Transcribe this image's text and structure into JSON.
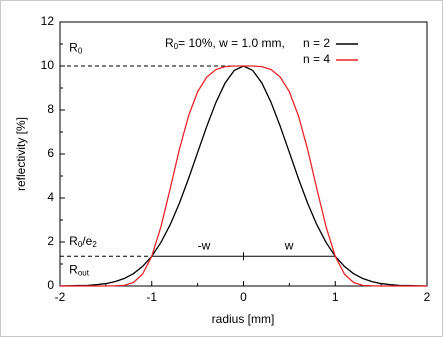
{
  "chart_data": {
    "type": "line",
    "x_label": "radius [mm]",
    "y_label": "reflectivity [%]",
    "legend_note": [
      "R",
      "0",
      "= 10%, w = 1.0 mm,"
    ],
    "x": [
      -2,
      -1.9,
      -1.8,
      -1.7,
      -1.6,
      -1.5,
      -1.4,
      -1.3,
      -1.2,
      -1.1,
      -1,
      -0.9,
      -0.8,
      -0.7,
      -0.6,
      -0.5,
      -0.4,
      -0.3,
      -0.2,
      -0.1,
      0,
      0.1,
      0.2,
      0.3,
      0.4,
      0.5,
      0.6,
      0.7,
      0.8,
      0.9,
      1,
      1.1,
      1.2,
      1.3,
      1.4,
      1.5,
      1.6,
      1.7,
      1.8,
      1.9,
      2
    ],
    "series": [
      {
        "name": "n = 2",
        "color": "#000000",
        "values": [
          0,
          0.01,
          0.02,
          0.03,
          0.06,
          0.11,
          0.2,
          0.34,
          0.56,
          0.89,
          1.35,
          1.98,
          2.78,
          3.75,
          4.87,
          6.07,
          7.26,
          8.35,
          9.23,
          9.8,
          10,
          9.8,
          9.23,
          8.35,
          7.26,
          6.07,
          4.87,
          3.75,
          2.78,
          1.98,
          1.35,
          0.89,
          0.56,
          0.34,
          0.2,
          0.11,
          0.06,
          0.03,
          0.02,
          0.01,
          0
        ]
      },
      {
        "name": "n = 4",
        "color": "#e8262a",
        "values": [
          0,
          0,
          0,
          0,
          0,
          0,
          0.01,
          0.03,
          0.16,
          0.54,
          1.35,
          2.69,
          4.41,
          6.19,
          7.72,
          8.83,
          9.5,
          9.84,
          9.97,
          10,
          10,
          10,
          9.97,
          9.84,
          9.5,
          8.83,
          7.72,
          6.19,
          4.41,
          2.69,
          1.35,
          0.54,
          0.16,
          0.03,
          0.01,
          0,
          0,
          0,
          0,
          0,
          0
        ]
      }
    ],
    "xlim": [
      -2,
      2
    ],
    "ylim": [
      0,
      12
    ],
    "xticks": [
      -2,
      -1,
      0,
      1,
      2
    ],
    "yticks": [
      0,
      2,
      4,
      6,
      8,
      10,
      12
    ],
    "reference_lines": [
      {
        "y": 10,
        "x": [
          -2,
          0
        ],
        "style": "dashed"
      },
      {
        "y": 1.35,
        "x": [
          -2,
          -1
        ],
        "style": "dashed"
      },
      {
        "y": 1.35,
        "x": [
          -1,
          1
        ],
        "style": "solid"
      }
    ],
    "annotations": [
      {
        "parts": [
          "R",
          "0"
        ],
        "x": -1.9,
        "y": 10.8
      },
      {
        "parts": [
          "R",
          "0",
          "/e",
          "2"
        ],
        "x": -1.9,
        "y": 2
      },
      {
        "parts": [
          "R",
          "out"
        ],
        "x": -1.9,
        "y": 0.7
      },
      {
        "parts": [
          "-w"
        ],
        "x": -0.5,
        "y": 1.8
      },
      {
        "parts": [
          "w"
        ],
        "x": 0.45,
        "y": 1.8
      }
    ]
  }
}
